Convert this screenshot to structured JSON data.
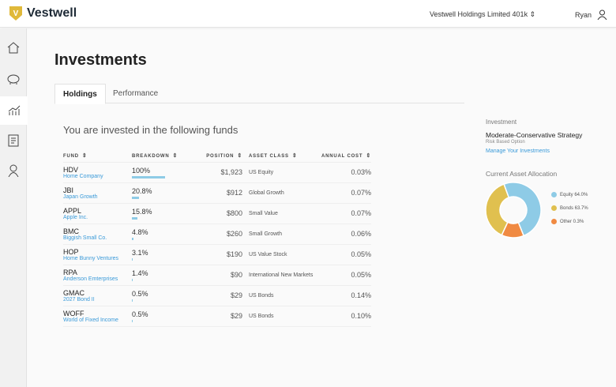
{
  "header": {
    "brand": "Vestwell",
    "logo_letter": "V",
    "plan": "Vestwell Holdings Limited 401k",
    "user": "Ryan"
  },
  "sidebar": {
    "items": [
      {
        "icon": "home-icon"
      },
      {
        "icon": "piggy-bank-icon"
      },
      {
        "icon": "chart-icon",
        "active": true
      },
      {
        "icon": "document-icon"
      },
      {
        "icon": "user-icon"
      }
    ]
  },
  "page": {
    "title": "Investments",
    "tabs": [
      {
        "label": "Holdings",
        "active": true
      },
      {
        "label": "Performance"
      }
    ],
    "heading": "You are invested in the following funds"
  },
  "table": {
    "columns": [
      "FUND",
      "BREAKDOWN",
      "POSITION",
      "ASSET CLASS",
      "ANNUAL COST"
    ],
    "rows": [
      {
        "ticker": "HDV",
        "name": "Home Company",
        "breakdown": "100%",
        "pct": 100,
        "position": "$1,923",
        "asset_class": "US Equity",
        "cost": "0.03%"
      },
      {
        "ticker": "JBI",
        "name": "Japan Growth",
        "breakdown": "20.8%",
        "pct": 20.8,
        "position": "$912",
        "asset_class": "Global Growth",
        "cost": "0.07%"
      },
      {
        "ticker": "APPL",
        "name": "Apple Inc.",
        "breakdown": "15.8%",
        "pct": 15.8,
        "position": "$800",
        "asset_class": "Small Value",
        "cost": "0.07%"
      },
      {
        "ticker": "BMC",
        "name": "Biggish Small Co.",
        "breakdown": "4.8%",
        "pct": 4.8,
        "position": "$260",
        "asset_class": "Small Growth",
        "cost": "0.06%"
      },
      {
        "ticker": "HOP",
        "name": "Home Bunny Ventures",
        "breakdown": "3.1%",
        "pct": 3.1,
        "position": "$190",
        "asset_class": "US Value Stock",
        "cost": "0.05%"
      },
      {
        "ticker": "RPA",
        "name": "Anderson Emterprises",
        "breakdown": "1.4%",
        "pct": 1.4,
        "position": "$90",
        "asset_class": "International New Markets",
        "cost": "0.05%"
      },
      {
        "ticker": "GMAC",
        "name": "2027 Bond II",
        "breakdown": "0.5%",
        "pct": 0.5,
        "position": "$29",
        "asset_class": "US Bonds",
        "cost": "0.14%"
      },
      {
        "ticker": "WOFF",
        "name": "World of Fixed Income",
        "breakdown": "0.5%",
        "pct": 0.5,
        "position": "$29",
        "asset_class": "US Bonds",
        "cost": "0.10%"
      }
    ]
  },
  "panel": {
    "section": "Investment",
    "strategy": "Moderate-Conservative Strategy",
    "option": "Risk Based Option",
    "link": "Manage Your Investments",
    "allocation_title": "Current Asset Allocation",
    "allocation": [
      {
        "label": "Equity 64.0%",
        "color": "#8ecbe6"
      },
      {
        "label": "Bonds 63.7%",
        "color": "#e0c04f"
      },
      {
        "label": "Other 0.3%",
        "color": "#f08a42"
      }
    ]
  },
  "colors": {
    "accent": "#3a9ad9",
    "bar": "#8ecbe6",
    "logo": "#e0b93a"
  }
}
